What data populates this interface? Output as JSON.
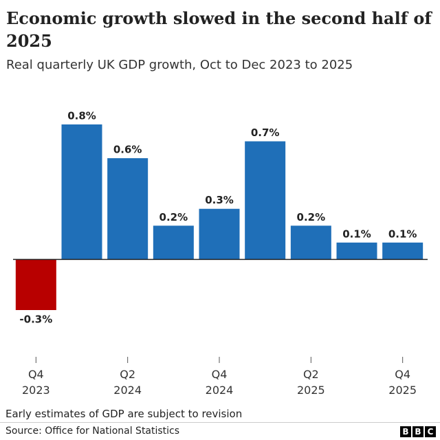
{
  "chart_data": {
    "type": "bar",
    "title": "Economic growth slowed in the second half of 2025",
    "subtitle": "Real quarterly UK GDP growth, Oct to Dec 2023 to 2025",
    "categories": [
      "Q4 2023",
      null,
      "Q2 2024",
      null,
      "Q4 2024",
      null,
      "Q2 2025",
      null,
      "Q4 2025"
    ],
    "values": [
      -0.3,
      0.8,
      0.6,
      0.2,
      0.3,
      0.7,
      0.2,
      0.1,
      0.1
    ],
    "value_labels": [
      "-0.3%",
      "0.8%",
      "0.6%",
      "0.2%",
      "0.3%",
      "0.7%",
      "0.2%",
      "0.1%",
      "0.1%"
    ],
    "colors": [
      "#b80000",
      "#1f6fb8",
      "#1f6fb8",
      "#1f6fb8",
      "#1f6fb8",
      "#1f6fb8",
      "#1f6fb8",
      "#1f6fb8",
      "#1f6fb8"
    ],
    "ylim": [
      -0.3,
      0.8
    ],
    "note": "Early estimates of GDP are subject to revision",
    "source": "Source: Office for National Statistics",
    "logo": [
      "B",
      "B",
      "C"
    ]
  }
}
